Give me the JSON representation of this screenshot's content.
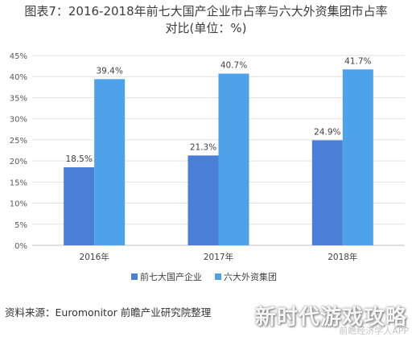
{
  "title_line1": "图表7：2016-2018年前七大国产企业市占率与六大外资集团市占率",
  "title_line2": "对比(单位：%)",
  "source": "资料来源：Euromonitor 前瞻产业研究院整理",
  "watermark_big": "新时代游戏攻略",
  "watermark_small": "前瞻经济学人APP",
  "chart_data": {
    "type": "bar",
    "categories": [
      "2016年",
      "2017年",
      "2018年"
    ],
    "series": [
      {
        "name": "前七大国产企业",
        "color": "#4a7fd8",
        "values": [
          18.5,
          21.3,
          24.9
        ]
      },
      {
        "name": "六大外资集团",
        "color": "#4da2e9",
        "values": [
          39.4,
          40.7,
          41.7
        ]
      }
    ],
    "value_labels": [
      [
        "18.5%",
        "21.3%",
        "24.9%"
      ],
      [
        "39.4%",
        "40.7%",
        "41.7%"
      ]
    ],
    "yticks": [
      "0%",
      "5%",
      "10%",
      "15%",
      "20%",
      "25%",
      "30%",
      "35%",
      "40%",
      "45%"
    ],
    "ylim": [
      0,
      45
    ],
    "grid": true,
    "legend_position": "bottom"
  }
}
